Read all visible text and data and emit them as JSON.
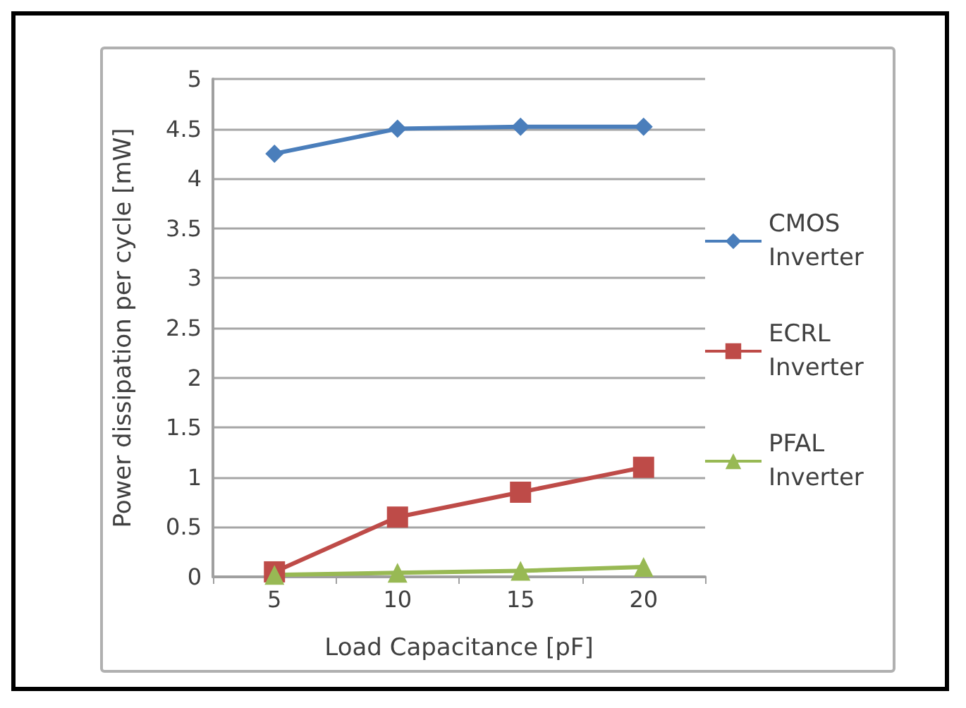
{
  "chart_data": {
    "type": "line",
    "xlabel": "Load Capacitance [pF]",
    "ylabel": "Power dissipation per cycle [mW]",
    "categories": [
      "5",
      "10",
      "15",
      "20"
    ],
    "series": [
      {
        "name": "CMOS Inverter",
        "color": "#4a7ebb",
        "marker": "diamond",
        "values": [
          4.25,
          4.5,
          4.52,
          4.52
        ]
      },
      {
        "name": "ECRL Inverter",
        "color": "#be4b48",
        "marker": "square",
        "values": [
          0.05,
          0.6,
          0.85,
          1.1
        ]
      },
      {
        "name": "PFAL Inverter",
        "color": "#98b954",
        "marker": "triangle",
        "values": [
          0.02,
          0.04,
          0.06,
          0.1
        ]
      }
    ],
    "ylim": [
      0,
      5
    ],
    "yticks": [
      0,
      0.5,
      1,
      1.5,
      2,
      2.5,
      3,
      3.5,
      4,
      4.5,
      5
    ],
    "grid": "y",
    "legend": "right",
    "line_style": "solid"
  }
}
